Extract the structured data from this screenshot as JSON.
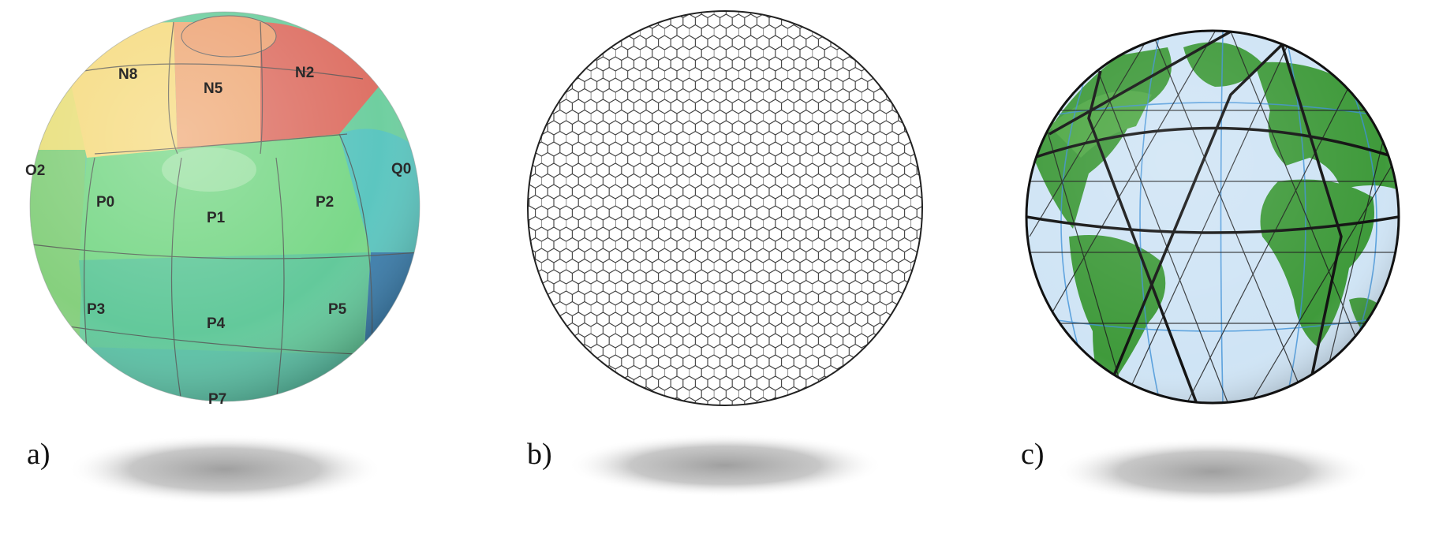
{
  "panels": [
    {
      "label": "a)",
      "grid_type": "rectangular patches on sphere",
      "cell_labels": [
        "N8",
        "N5",
        "N2",
        "O2",
        "P0",
        "P1",
        "P2",
        "Q0",
        "P3",
        "P4",
        "P5",
        "P7"
      ],
      "colors": [
        "#f6dc83",
        "#f0ad7c",
        "#de7266",
        "#7fd884",
        "#6fcfa0",
        "#5cc6c0",
        "#3c7fae"
      ]
    },
    {
      "label": "b)",
      "grid_type": "hexagonal geodesic grid",
      "colors": [
        "#ffffff",
        "#333333"
      ]
    },
    {
      "label": "c)",
      "grid_type": "triangular icosahedral grid over world map",
      "colors": [
        "#cfe4f5",
        "#3f9a3b",
        "#111111",
        "#3d90d8"
      ]
    }
  ]
}
